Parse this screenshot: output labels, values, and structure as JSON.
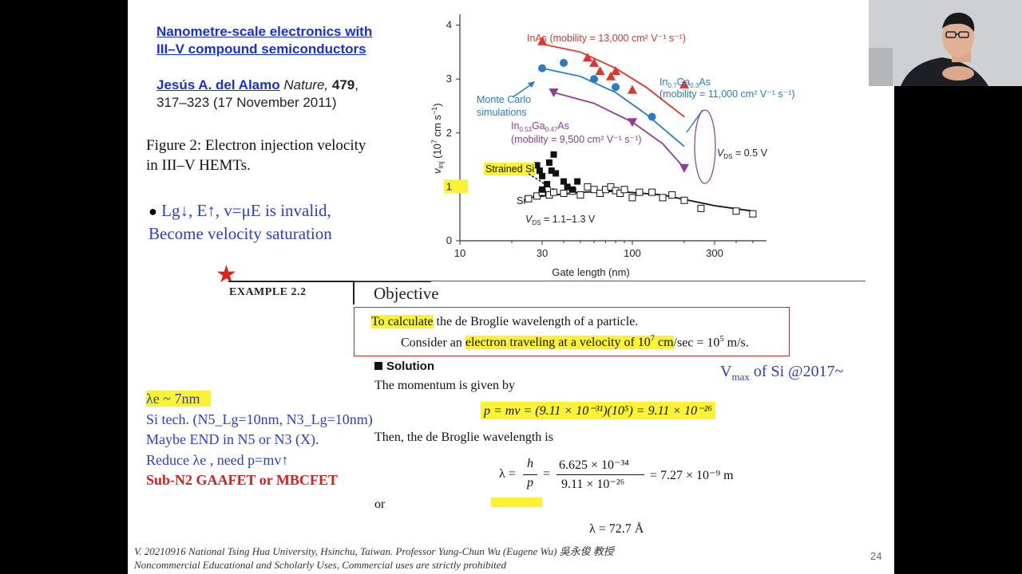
{
  "reference": {
    "title_line1": "Nanometre-scale electronics with",
    "title_line2": "III–V compound semiconductors",
    "author": "Jesús A. del Alamo",
    "journal": "Nature,",
    "volume": "479",
    "pages_date": "317–323 (17 November 2011)"
  },
  "figure_caption": {
    "line1": "Figure 2: Electron injection velocity",
    "line2": "in III–V HEMTs."
  },
  "bullet": {
    "line1": "Lg↓, E↑, v=μE  is invalid,",
    "line2": "Become velocity saturation"
  },
  "example": {
    "label": "EXAMPLE 2.2",
    "heading": "Objective",
    "objective_highlight": "To calculate",
    "objective_rest": " the de Broglie wavelength of a particle.",
    "consider_prefix": "Consider an ",
    "consider_highlight_a": "electron traveling at a velocity of 10",
    "consider_highlight_exp": "7",
    "consider_highlight_b": " cm",
    "consider_suffix_a": "/sec = 10",
    "consider_suffix_exp": "5",
    "consider_suffix_b": " m/s.",
    "solution_heading": "Solution",
    "momentum_intro": "The momentum is given by",
    "momentum_eq": "p = mv = (9.11 × 10⁻³¹)(10⁵) = 9.11 × 10⁻²⁶",
    "wavelength_intro": "Then, the de Broglie wavelength is",
    "lambda_lhs": "λ = ",
    "h_num": "h",
    "p_den": "p",
    "frac_num": "6.625 × 10⁻³⁴",
    "frac_den": "9.11 × 10⁻²⁶",
    "lambda_result": "= 7.27 × 10⁻⁹ m",
    "or_text": "or",
    "lambda_angstrom": "λ = 72.7 Å"
  },
  "vmax_note": "Vmax of Si @2017~",
  "vmax_note_parts": {
    "v": "V",
    "sub": "max",
    "rest": " of Si @2017~"
  },
  "notes": {
    "lambda_e": "λe ~ 7nm",
    "si_tech": "Si tech. (N5_Lg=10nm, N3_Lg=10nm)",
    "maybe_end": "Maybe END in N5 or N3 (X).",
    "reduce": "Reduce λe , need p=mv↑",
    "sub_n2": "Sub-N2 GAAFET or MBCFET"
  },
  "footer": {
    "line1": "V. 20210916 National Tsing Hua University, Hsinchu, Taiwan. Professor Yung-Chun Wu (Eugene Wu) 吳永俊 教授",
    "line2": "Noncommercial Educational and Scholarly Uses, Commercial uses are strictly prohibited"
  },
  "page_number": "24",
  "colors": {
    "inas": "#e0342f",
    "ingaas07": "#2b7bbf",
    "ingaas053": "#8e3c96",
    "si": "#111111",
    "highlight": "#fbf234",
    "box_border": "#d12a2a",
    "link_blue": "#1a2fd0",
    "note_blue": "#2a3fc8",
    "note_red": "#d42020"
  },
  "chart_data": {
    "type": "scatter",
    "xscale": "log",
    "xlabel": "Gate length (nm)",
    "ylabel": "v_inj (10^7 cm s^-1)",
    "ylabel_parts": {
      "v": "v",
      "sub": "inj",
      "rest_a": " (10",
      "exp": "7",
      "rest_b": " cm s",
      "exp2": "−1",
      "rest_c": ")"
    },
    "xlim": [
      10,
      600
    ],
    "ylim": [
      0,
      4.2
    ],
    "xticks": [
      10,
      30,
      100,
      300
    ],
    "xtick_labels": [
      "10",
      "30",
      "100",
      "300"
    ],
    "yticks": [
      0,
      1,
      2,
      3,
      4
    ],
    "ytick_labels": [
      "0",
      "1",
      "2",
      "3",
      "4"
    ],
    "series": [
      {
        "name": "InAs",
        "label_text": "InAs (mobility = 13,000 cm² V⁻¹ s⁻¹)",
        "marker": "triangle-up",
        "points": [
          [
            30,
            3.7
          ],
          [
            55,
            3.4
          ],
          [
            60,
            3.3
          ],
          [
            65,
            3.15
          ],
          [
            75,
            3.05
          ],
          [
            80,
            3.15
          ],
          [
            100,
            2.8
          ],
          [
            200,
            2.9
          ]
        ],
        "fit": [
          [
            30,
            3.65
          ],
          [
            50,
            3.5
          ],
          [
            80,
            3.2
          ],
          [
            120,
            2.85
          ],
          [
            200,
            2.3
          ]
        ]
      },
      {
        "name": "In0.7Ga0.3As",
        "label_parts": [
          "In",
          "0.7",
          "Ga",
          "0.3",
          "As"
        ],
        "label_line2": "(mobility = 11,000 cm² V⁻¹ s⁻¹)",
        "marker": "circle",
        "points": [
          [
            30,
            3.2
          ],
          [
            40,
            3.3
          ],
          [
            60,
            3.0
          ],
          [
            80,
            2.85
          ],
          [
            130,
            2.3
          ]
        ],
        "fit": [
          [
            30,
            3.2
          ],
          [
            50,
            3.05
          ],
          [
            80,
            2.75
          ],
          [
            120,
            2.35
          ],
          [
            200,
            1.75
          ]
        ]
      },
      {
        "name": "In0.53Ga0.47As",
        "label_parts": [
          "In",
          "0.53",
          "Ga",
          "0.47",
          "As"
        ],
        "label_line2": "(mobility = 9,500 cm² V⁻¹ s⁻¹)",
        "marker": "triangle-down",
        "points": [
          [
            35,
            2.75
          ],
          [
            100,
            2.2
          ],
          [
            200,
            1.35
          ]
        ],
        "fit": [
          [
            35,
            2.75
          ],
          [
            60,
            2.55
          ],
          [
            100,
            2.2
          ],
          [
            150,
            1.8
          ],
          [
            200,
            1.35
          ]
        ]
      },
      {
        "name": "Si",
        "marker": "square-open",
        "points": [
          [
            25,
            0.78
          ],
          [
            28,
            0.83
          ],
          [
            30,
            0.9
          ],
          [
            33,
            0.85
          ],
          [
            35,
            0.9
          ],
          [
            40,
            0.88
          ],
          [
            45,
            0.92
          ],
          [
            50,
            0.85
          ],
          [
            55,
            1.0
          ],
          [
            60,
            0.95
          ],
          [
            65,
            0.88
          ],
          [
            70,
            0.95
          ],
          [
            75,
            1.0
          ],
          [
            80,
            0.93
          ],
          [
            85,
            0.88
          ],
          [
            90,
            0.95
          ],
          [
            100,
            0.8
          ],
          [
            110,
            0.9
          ],
          [
            130,
            0.9
          ],
          [
            150,
            0.8
          ],
          [
            170,
            0.85
          ],
          [
            200,
            0.75
          ],
          [
            250,
            0.6
          ],
          [
            400,
            0.55
          ],
          [
            500,
            0.5
          ]
        ],
        "fit": [
          [
            25,
            0.8
          ],
          [
            50,
            0.9
          ],
          [
            80,
            0.92
          ],
          [
            150,
            0.85
          ],
          [
            300,
            0.65
          ],
          [
            500,
            0.55
          ]
        ]
      },
      {
        "name": "Strained Si",
        "marker": "square-filled",
        "points": [
          [
            28,
            1.4
          ],
          [
            29,
            1.3
          ],
          [
            30,
            1.2
          ],
          [
            30,
            0.95
          ],
          [
            32,
            1.05
          ],
          [
            33,
            1.45
          ],
          [
            34,
            1.3
          ],
          [
            35,
            1.6
          ],
          [
            36,
            1.25
          ],
          [
            40,
            1.1
          ],
          [
            42,
            1.0
          ],
          [
            45,
            0.95
          ],
          [
            48,
            1.1
          ]
        ]
      }
    ],
    "annotations": {
      "monte_carlo_line1": "Monte Carlo",
      "monte_carlo_line2": "simulations",
      "strained_si": "Strained Si",
      "si_label": "Si",
      "vds_high_v": "V",
      "vds_high_sub": "DS",
      "vds_high_rest": " = 0.5 V",
      "vds_low_v": "V",
      "vds_low_sub": "DS",
      "vds_low_rest": " = 1.1–1.3 V"
    }
  }
}
